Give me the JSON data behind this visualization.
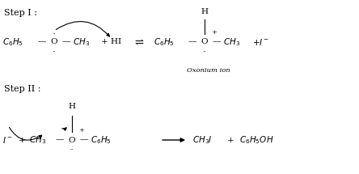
{
  "bg_color": "#ffffff",
  "fig_width": 4.44,
  "fig_height": 2.15,
  "dpi": 100,
  "step1_label": "Step I :",
  "step2_label": "Step II :",
  "oxonium_label": "Oxonium ion",
  "xlim": [
    0,
    4.44
  ],
  "ylim": [
    0,
    2.15
  ]
}
